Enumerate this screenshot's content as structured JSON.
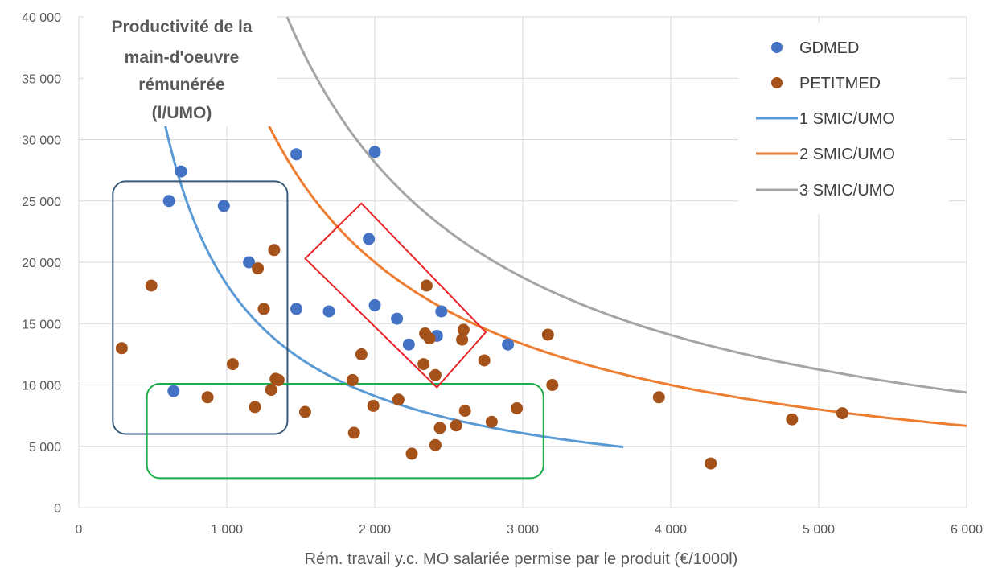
{
  "chart_data": {
    "type": "scatter",
    "title_lines": [
      "Productivité de la",
      "main-d'oeuvre",
      "rémunérée",
      "(l/UMO)"
    ],
    "xlabel": "Rém. travail y.c. MO salariée permise par le produit (€/1000l)",
    "ylabel": "",
    "xlim": [
      0,
      6000
    ],
    "ylim": [
      0,
      40000
    ],
    "x_ticks": [
      {
        "value": 0,
        "label": "0"
      },
      {
        "value": 1000,
        "label": "1 000"
      },
      {
        "value": 2000,
        "label": "2 000"
      },
      {
        "value": 3000,
        "label": "3 000"
      },
      {
        "value": 4000,
        "label": "4 000"
      },
      {
        "value": 5000,
        "label": "5 000"
      },
      {
        "value": 6000,
        "label": "6 000"
      }
    ],
    "y_ticks": [
      {
        "value": 0,
        "label": "0"
      },
      {
        "value": 5000,
        "label": "5 000"
      },
      {
        "value": 10000,
        "label": "10 000"
      },
      {
        "value": 15000,
        "label": "15 000"
      },
      {
        "value": 20000,
        "label": "20 000"
      },
      {
        "value": 25000,
        "label": "25 000"
      },
      {
        "value": 30000,
        "label": "30 000"
      },
      {
        "value": 35000,
        "label": "35 000"
      },
      {
        "value": 40000,
        "label": "40 000"
      }
    ],
    "grid": true,
    "legend_position": "top-right",
    "series": [
      {
        "name": "GDMED",
        "kind": "scatter",
        "color": "#4472C4",
        "points": [
          [
            610,
            25000
          ],
          [
            690,
            27400
          ],
          [
            980,
            24600
          ],
          [
            1150,
            20000
          ],
          [
            1470,
            28800
          ],
          [
            1470,
            16200
          ],
          [
            1690,
            16000
          ],
          [
            1960,
            21900
          ],
          [
            2000,
            29000
          ],
          [
            2000,
            16500
          ],
          [
            2150,
            15400
          ],
          [
            2230,
            13300
          ],
          [
            2420,
            14000
          ],
          [
            2450,
            16000
          ],
          [
            2900,
            13300
          ],
          [
            640,
            9500
          ]
        ]
      },
      {
        "name": "PETITMED",
        "kind": "scatter",
        "color": "#A5511A",
        "points": [
          [
            290,
            13000
          ],
          [
            490,
            18100
          ],
          [
            870,
            9000
          ],
          [
            1040,
            11700
          ],
          [
            1190,
            8200
          ],
          [
            1210,
            19500
          ],
          [
            1250,
            16200
          ],
          [
            1300,
            9600
          ],
          [
            1320,
            21000
          ],
          [
            1330,
            10500
          ],
          [
            1350,
            10400
          ],
          [
            1530,
            7800
          ],
          [
            1850,
            10400
          ],
          [
            1860,
            6100
          ],
          [
            1910,
            12500
          ],
          [
            1990,
            8300
          ],
          [
            2160,
            8800
          ],
          [
            2250,
            4400
          ],
          [
            2330,
            11700
          ],
          [
            2340,
            14200
          ],
          [
            2350,
            18100
          ],
          [
            2370,
            13800
          ],
          [
            2410,
            10800
          ],
          [
            2410,
            5100
          ],
          [
            2440,
            6500
          ],
          [
            2550,
            6700
          ],
          [
            2590,
            13700
          ],
          [
            2600,
            14500
          ],
          [
            2610,
            7900
          ],
          [
            2740,
            12000
          ],
          [
            2790,
            7000
          ],
          [
            2960,
            8100
          ],
          [
            3170,
            14100
          ],
          [
            3200,
            10000
          ],
          [
            3920,
            9000
          ],
          [
            4270,
            3600
          ],
          [
            4820,
            7200
          ],
          [
            5160,
            7700
          ]
        ]
      },
      {
        "name": "1 SMIC/UMO",
        "kind": "curve",
        "color": "#5B9BD5",
        "k": 18200000,
        "x_range": [
          455,
          3680
        ]
      },
      {
        "name": "2 SMIC/UMO",
        "kind": "curve",
        "color": "#ED7D31",
        "k": 40000000,
        "x_range": [
          1150,
          6000
        ]
      },
      {
        "name": "3 SMIC/UMO",
        "kind": "curve",
        "color": "#A5A5A5",
        "k": 56300000,
        "x_range": [
          1408,
          6000
        ]
      }
    ],
    "annotations": [
      {
        "shape": "rounded-rect",
        "color": "#3A5A7C",
        "x": [
          230,
          1410
        ],
        "y": [
          6000,
          26600
        ]
      },
      {
        "shape": "rounded-rect",
        "color": "#1AAE4A",
        "x": [
          460,
          3140
        ],
        "y": [
          2400,
          10100
        ]
      },
      {
        "shape": "polygon",
        "color": "#E8232A",
        "points": [
          [
            1530,
            20300
          ],
          [
            1910,
            24800
          ],
          [
            2750,
            14300
          ],
          [
            2420,
            9800
          ]
        ]
      }
    ]
  }
}
